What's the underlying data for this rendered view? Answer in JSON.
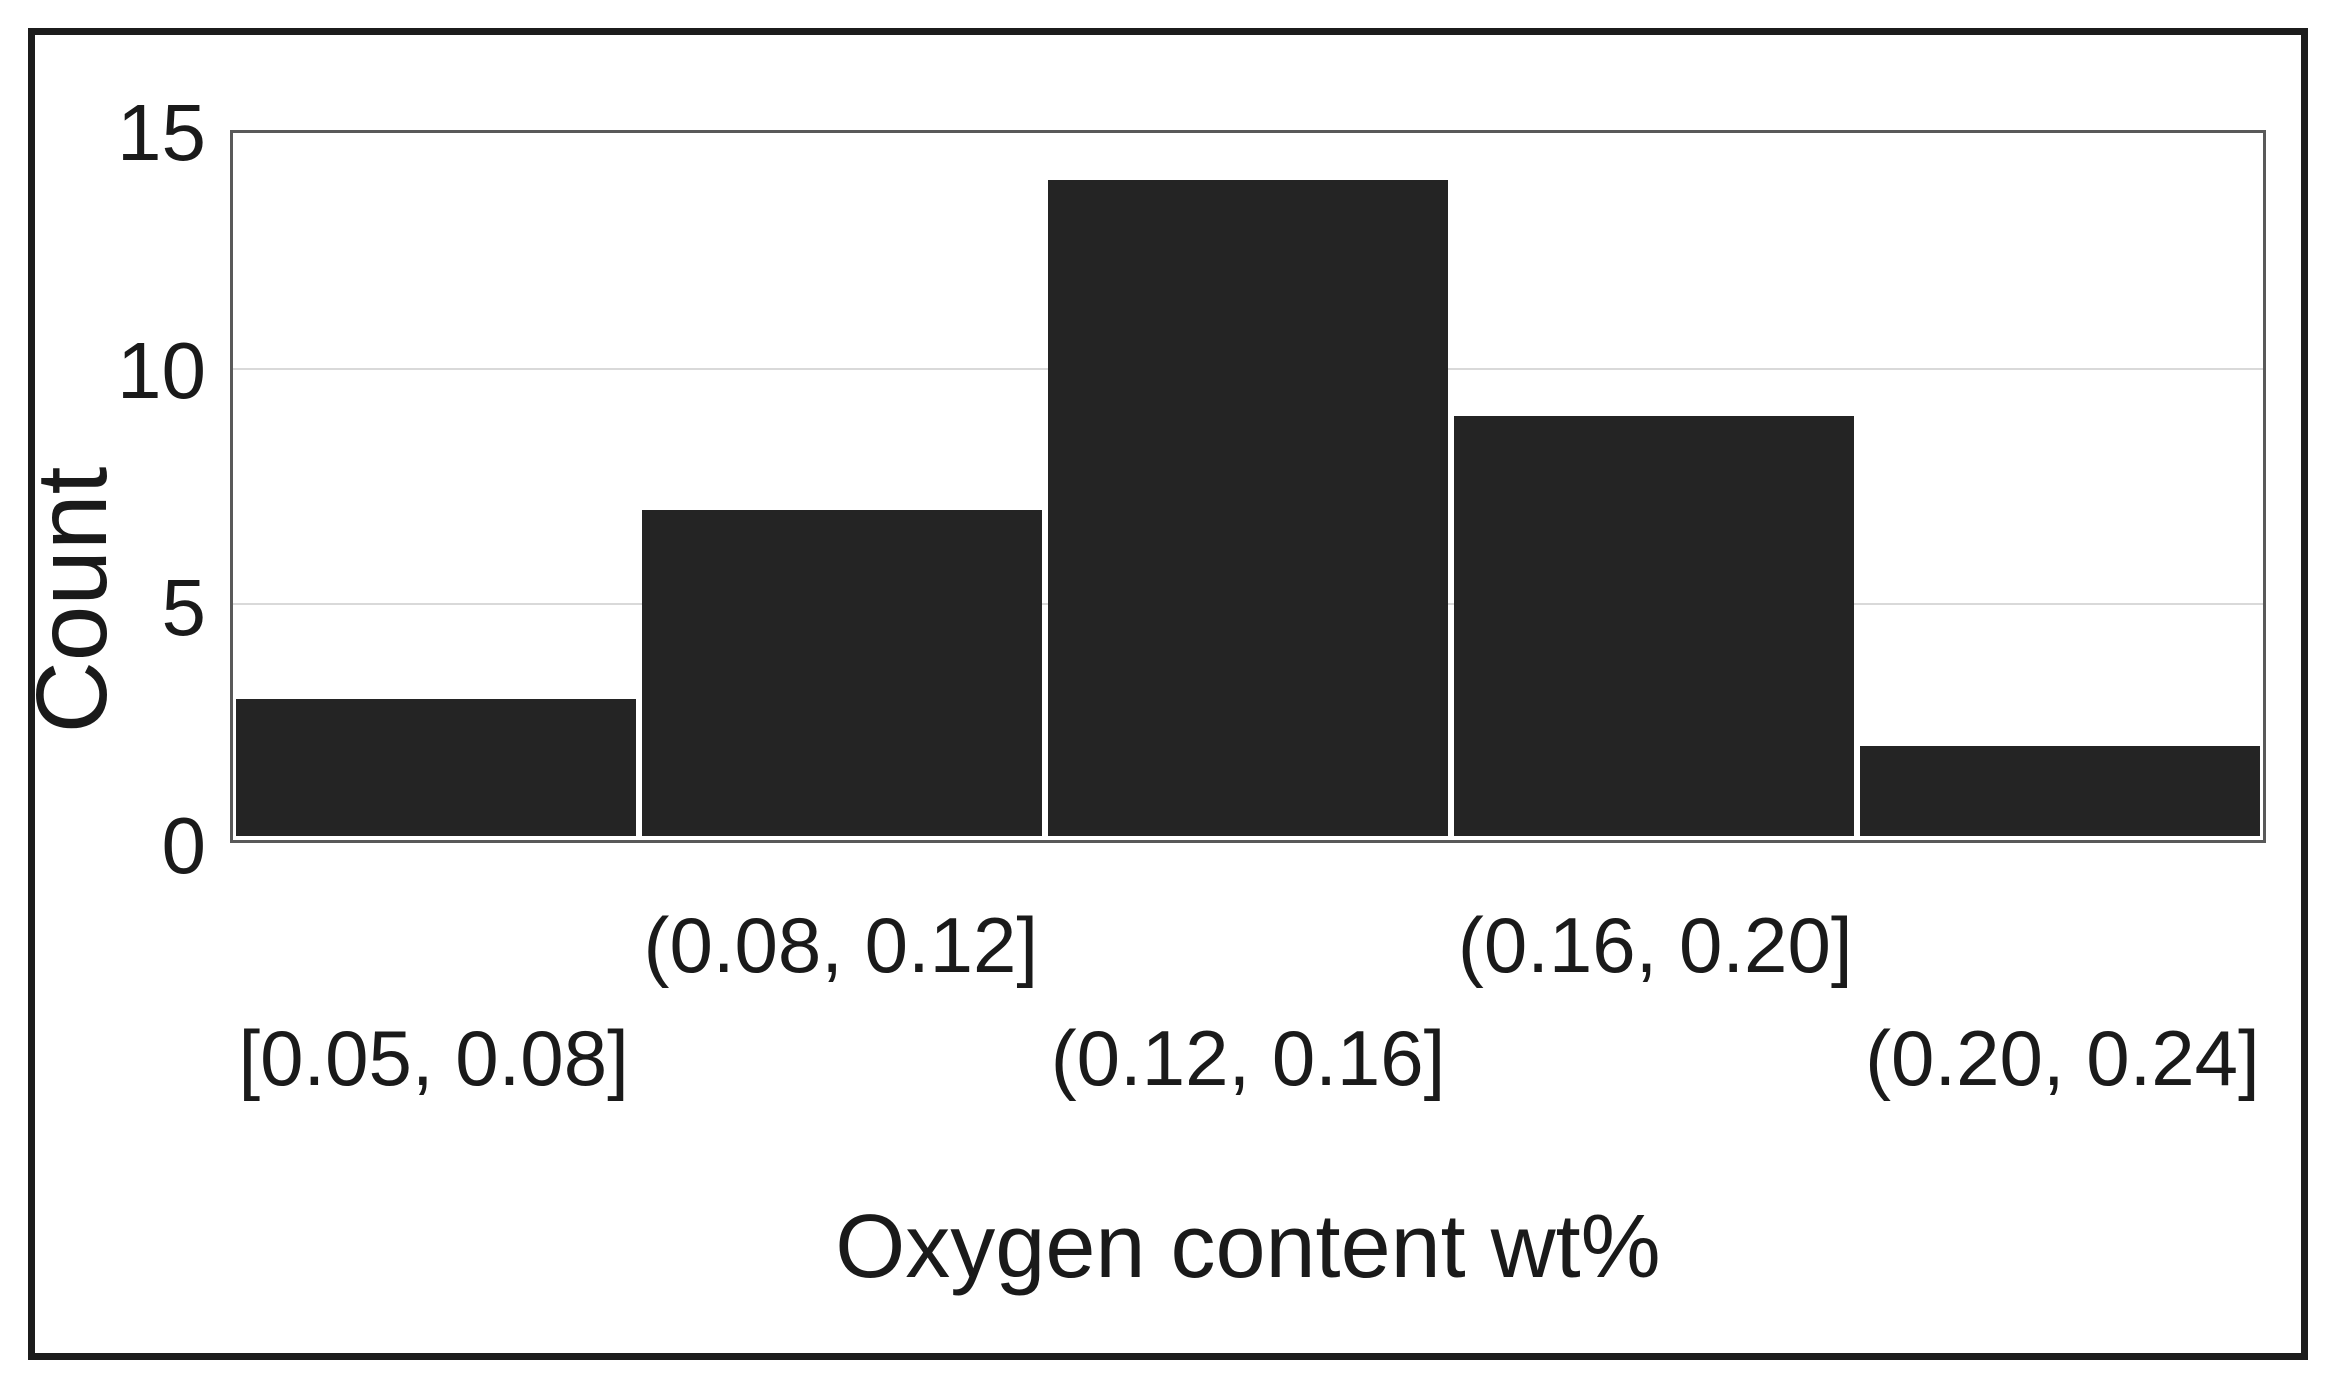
{
  "chart_data": {
    "type": "bar",
    "subtype": "histogram",
    "categories": [
      "[0.05, 0.08]",
      "(0.08, 0.12]",
      "(0.12, 0.16]",
      "(0.16, 0.20]",
      "(0.20, 0.24]"
    ],
    "values": [
      3,
      7,
      14,
      9,
      2
    ],
    "title": "",
    "xlabel": "Oxygen content wt%",
    "ylabel": "Count",
    "ylim": [
      0,
      15
    ],
    "yticks": [
      0,
      5,
      10,
      15
    ],
    "grid": "horizontal",
    "legend": "none",
    "bar_color": "#242424",
    "gridline_color": "#d9d9d9",
    "plot_border_color": "#595959",
    "frame_border_color": "#1c1c1c",
    "text_color": "#1a1a1a"
  }
}
